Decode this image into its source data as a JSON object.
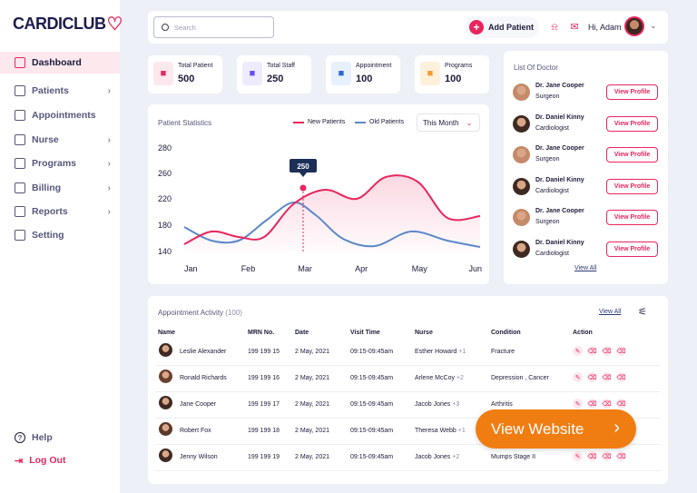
{
  "brand": {
    "name": "CARDICLUB",
    "accent": "#e8265e"
  },
  "sidebar": {
    "items": [
      {
        "label": "Dashboard",
        "icon": "grid-icon",
        "active": true,
        "chevron": false
      },
      {
        "label": "Patients",
        "icon": "patients-icon",
        "chevron": true
      },
      {
        "label": "Appointments",
        "icon": "calendar-icon",
        "chevron": false
      },
      {
        "label": "Nurse",
        "icon": "nurse-icon",
        "chevron": true
      },
      {
        "label": "Programs",
        "icon": "monitor-icon",
        "chevron": true
      },
      {
        "label": "Billing",
        "icon": "billing-icon",
        "chevron": true
      },
      {
        "label": "Reports",
        "icon": "report-icon",
        "chevron": true
      },
      {
        "label": "Setting",
        "icon": "gear-icon",
        "chevron": false
      }
    ],
    "help_label": "Help",
    "logout_label": "Log Out"
  },
  "header": {
    "search_placeholder": "Search",
    "add_patient_label": "Add Patient",
    "greeting": "Hi, Adam"
  },
  "stats": [
    {
      "label": "Total Patient",
      "value": "500",
      "icon": "patient-icon",
      "bg": "#fde8ee",
      "color": "#e8265e"
    },
    {
      "label": "Total Staff",
      "value": "250",
      "icon": "staff-icon",
      "bg": "#eeeaff",
      "color": "#6a4ff0"
    },
    {
      "label": "Appointment",
      "value": "100",
      "icon": "calendar-icon",
      "bg": "#e6f0ff",
      "color": "#2a67d8"
    },
    {
      "label": "Programs",
      "value": "100",
      "icon": "easel-icon",
      "bg": "#fff0dc",
      "color": "#f29a2e"
    }
  ],
  "chart": {
    "title": "Patient Statistics",
    "period": "This Month",
    "tooltip": "250"
  },
  "chart_data": {
    "type": "line",
    "x": [
      "Jan",
      "Feb",
      "Mar",
      "Apr",
      "May",
      "Jun"
    ],
    "yticks": [
      280,
      260,
      220,
      180,
      140
    ],
    "series": [
      {
        "name": "New Patients",
        "color": "#e8265e",
        "values": [
          150,
          175,
          250,
          235,
          255,
          195
        ]
      },
      {
        "name": "Old Patients",
        "color": "#5b88c7",
        "values": [
          175,
          150,
          220,
          150,
          165,
          145
        ]
      }
    ],
    "title": "Patient Statistics"
  },
  "doctors": {
    "title": "List Of Doctor",
    "button_label": "View Profile",
    "view_all": "View All",
    "list": [
      {
        "name": "Dr. Jane Cooper",
        "role": "Surgeon"
      },
      {
        "name": "Dr. Daniel Kinny",
        "role": "Cardiologist"
      },
      {
        "name": "Dr. Jane Cooper",
        "role": "Surgeon"
      },
      {
        "name": "Dr. Daniel Kinny",
        "role": "Cardiologist"
      },
      {
        "name": "Dr. Jane Cooper",
        "role": "Surgeon"
      },
      {
        "name": "Dr. Daniel Kinny",
        "role": "Cardiologist"
      }
    ]
  },
  "appointments": {
    "title": "Appointment Activity",
    "count": "(100)",
    "view_all": "View All",
    "columns": [
      "Name",
      "MRN No.",
      "Date",
      "Visit Time",
      "Nurse",
      "Condition",
      "Action"
    ],
    "rows": [
      {
        "name": "Leslie Alexander",
        "mrn": "199 199 15",
        "date": "2 May, 2021",
        "time": "09:15-09:45am",
        "nurse": "Esther Howard",
        "nurse_extra": "+1",
        "condition": "Fracture"
      },
      {
        "name": "Ronald Richards",
        "mrn": "199 199 16",
        "date": "2 May, 2021",
        "time": "09:15-09:45am",
        "nurse": "Arlene McCoy",
        "nurse_extra": "+2",
        "condition": "Depression , Cancer"
      },
      {
        "name": "Jane Cooper",
        "mrn": "199 199 17",
        "date": "2 May, 2021",
        "time": "09:15-09:45am",
        "nurse": "Jacob Jones",
        "nurse_extra": "+3",
        "condition": "Arthritis"
      },
      {
        "name": "Robert Fox",
        "mrn": "199 199 18",
        "date": "2 May, 2021",
        "time": "09:15-09:45am",
        "nurse": "Theresa Webb",
        "nurse_extra": "+1",
        "condition": ""
      },
      {
        "name": "Jenny Wilson",
        "mrn": "199 199 19",
        "date": "2 May, 2021",
        "time": "09:15-09:45am",
        "nurse": "Jacob Jones",
        "nurse_extra": "+2",
        "condition": "Mumps Stage II"
      }
    ]
  },
  "view_website_label": "View Website"
}
